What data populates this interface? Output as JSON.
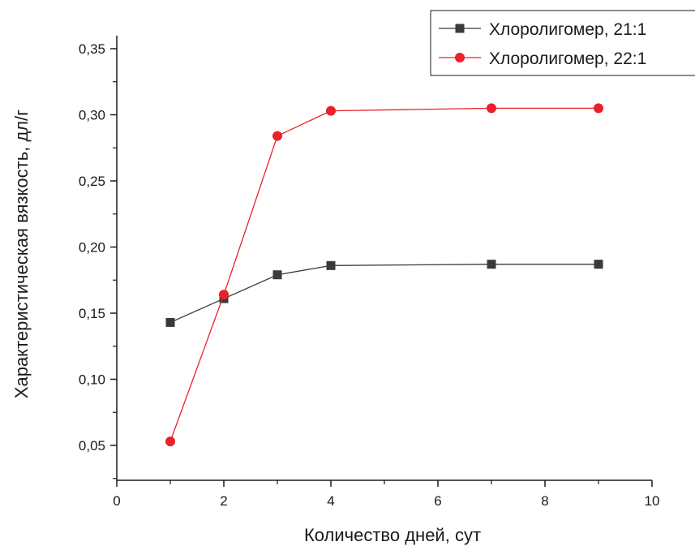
{
  "chart_data": {
    "type": "line",
    "title": "",
    "xlabel": "Количество дней, сут",
    "ylabel": "Характеристическая вязкость, дл/г",
    "xlim": [
      0,
      10
    ],
    "ylim": [
      0.025,
      0.35
    ],
    "xticks": [
      0,
      2,
      4,
      6,
      8,
      10
    ],
    "xtick_labels": [
      "0",
      "2",
      "4",
      "6",
      "8",
      "10"
    ],
    "yticks": [
      0.05,
      0.1,
      0.15,
      0.2,
      0.25,
      0.3,
      0.35
    ],
    "ytick_labels": [
      "0,05",
      "0,10",
      "0,15",
      "0,20",
      "0,25",
      "0,30",
      "0,35"
    ],
    "grid": false,
    "legend_position": "top-right",
    "series": [
      {
        "name": "Хлоролигомер, 21:1",
        "color": "#3a3a3a",
        "marker": "square",
        "x": [
          1,
          2,
          3,
          4,
          7,
          9
        ],
        "y": [
          0.143,
          0.161,
          0.179,
          0.186,
          0.187,
          0.187
        ]
      },
      {
        "name": "Хлоролигомер, 22:1",
        "color": "#e8212a",
        "marker": "circle",
        "x": [
          1,
          2,
          3,
          4,
          7,
          9
        ],
        "y": [
          0.053,
          0.164,
          0.284,
          0.303,
          0.305,
          0.305
        ]
      }
    ]
  }
}
